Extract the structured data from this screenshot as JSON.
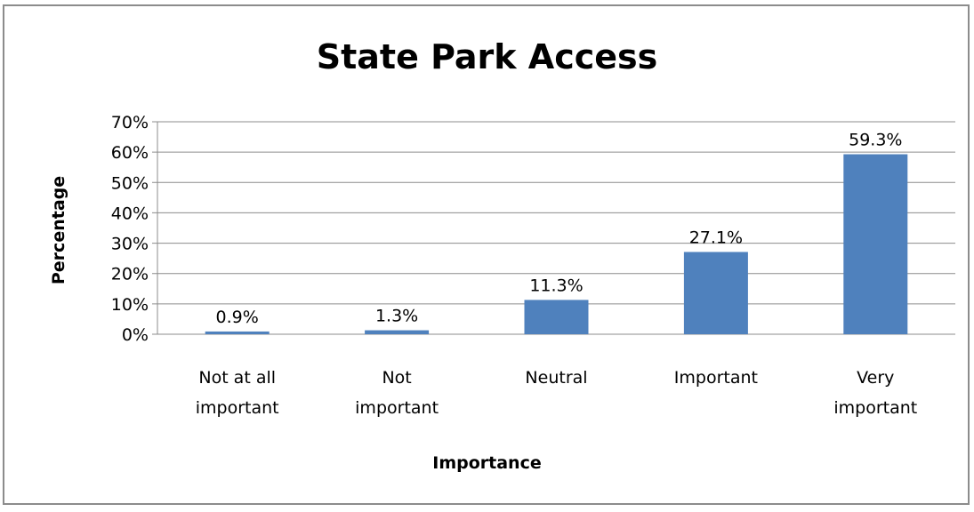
{
  "chart_data": {
    "type": "bar",
    "title": "State Park Access",
    "xlabel": "Importance",
    "ylabel": "Percentage",
    "categories": [
      [
        "Not at all",
        "important"
      ],
      [
        "Not",
        "important"
      ],
      [
        "Neutral"
      ],
      [
        "Important"
      ],
      [
        "Very",
        "important"
      ]
    ],
    "values": [
      0.9,
      1.3,
      11.3,
      27.1,
      59.3
    ],
    "data_labels": [
      "0.9%",
      "1.3%",
      "11.3%",
      "27.1%",
      "59.3%"
    ],
    "ylim": [
      0,
      70
    ],
    "yticks": [
      0,
      10,
      20,
      30,
      40,
      50,
      60,
      70
    ],
    "ytick_labels": [
      "0%",
      "10%",
      "20%",
      "30%",
      "40%",
      "50%",
      "60%",
      "70%"
    ],
    "grid": true,
    "legend": "none",
    "bar_color": "#4f81bd",
    "grid_color": "#8c8c8c"
  }
}
